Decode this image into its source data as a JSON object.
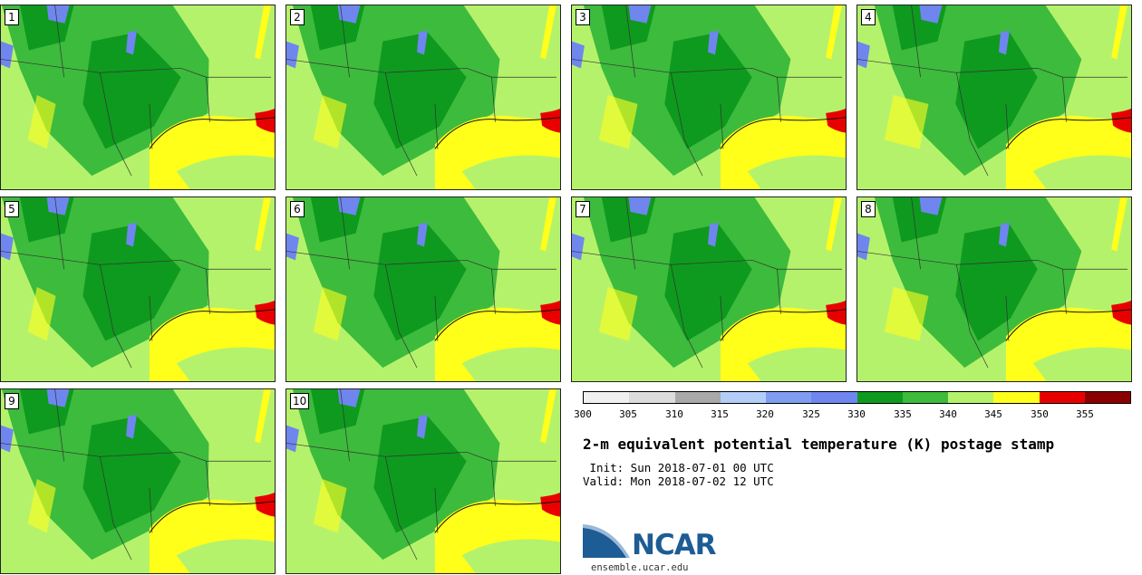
{
  "panels": [
    "1",
    "2",
    "3",
    "4",
    "5",
    "6",
    "7",
    "8",
    "9",
    "10"
  ],
  "colorbar": {
    "ticks": [
      "300",
      "305",
      "310",
      "315",
      "320",
      "325",
      "330",
      "335",
      "340",
      "345",
      "350",
      "355"
    ],
    "colors": [
      "#f0f0f0",
      "#dcdcdc",
      "#a9a9a9",
      "#b4cdf8",
      "#7f9ef2",
      "#6f86ee",
      "#0e9a1e",
      "#3dbb3c",
      "#b5f26c",
      "#ffff1a",
      "#e80000",
      "#8a0000"
    ]
  },
  "title": "2-m equivalent potential temperature (K) postage stamp",
  "init": " Init: Sun 2018-07-01 00 UTC",
  "valid": "Valid: Mon 2018-07-02 12 UTC",
  "logo": {
    "text": "NCAR",
    "url": "ensemble.ucar.edu",
    "brand_color": "#1d5c95"
  }
}
